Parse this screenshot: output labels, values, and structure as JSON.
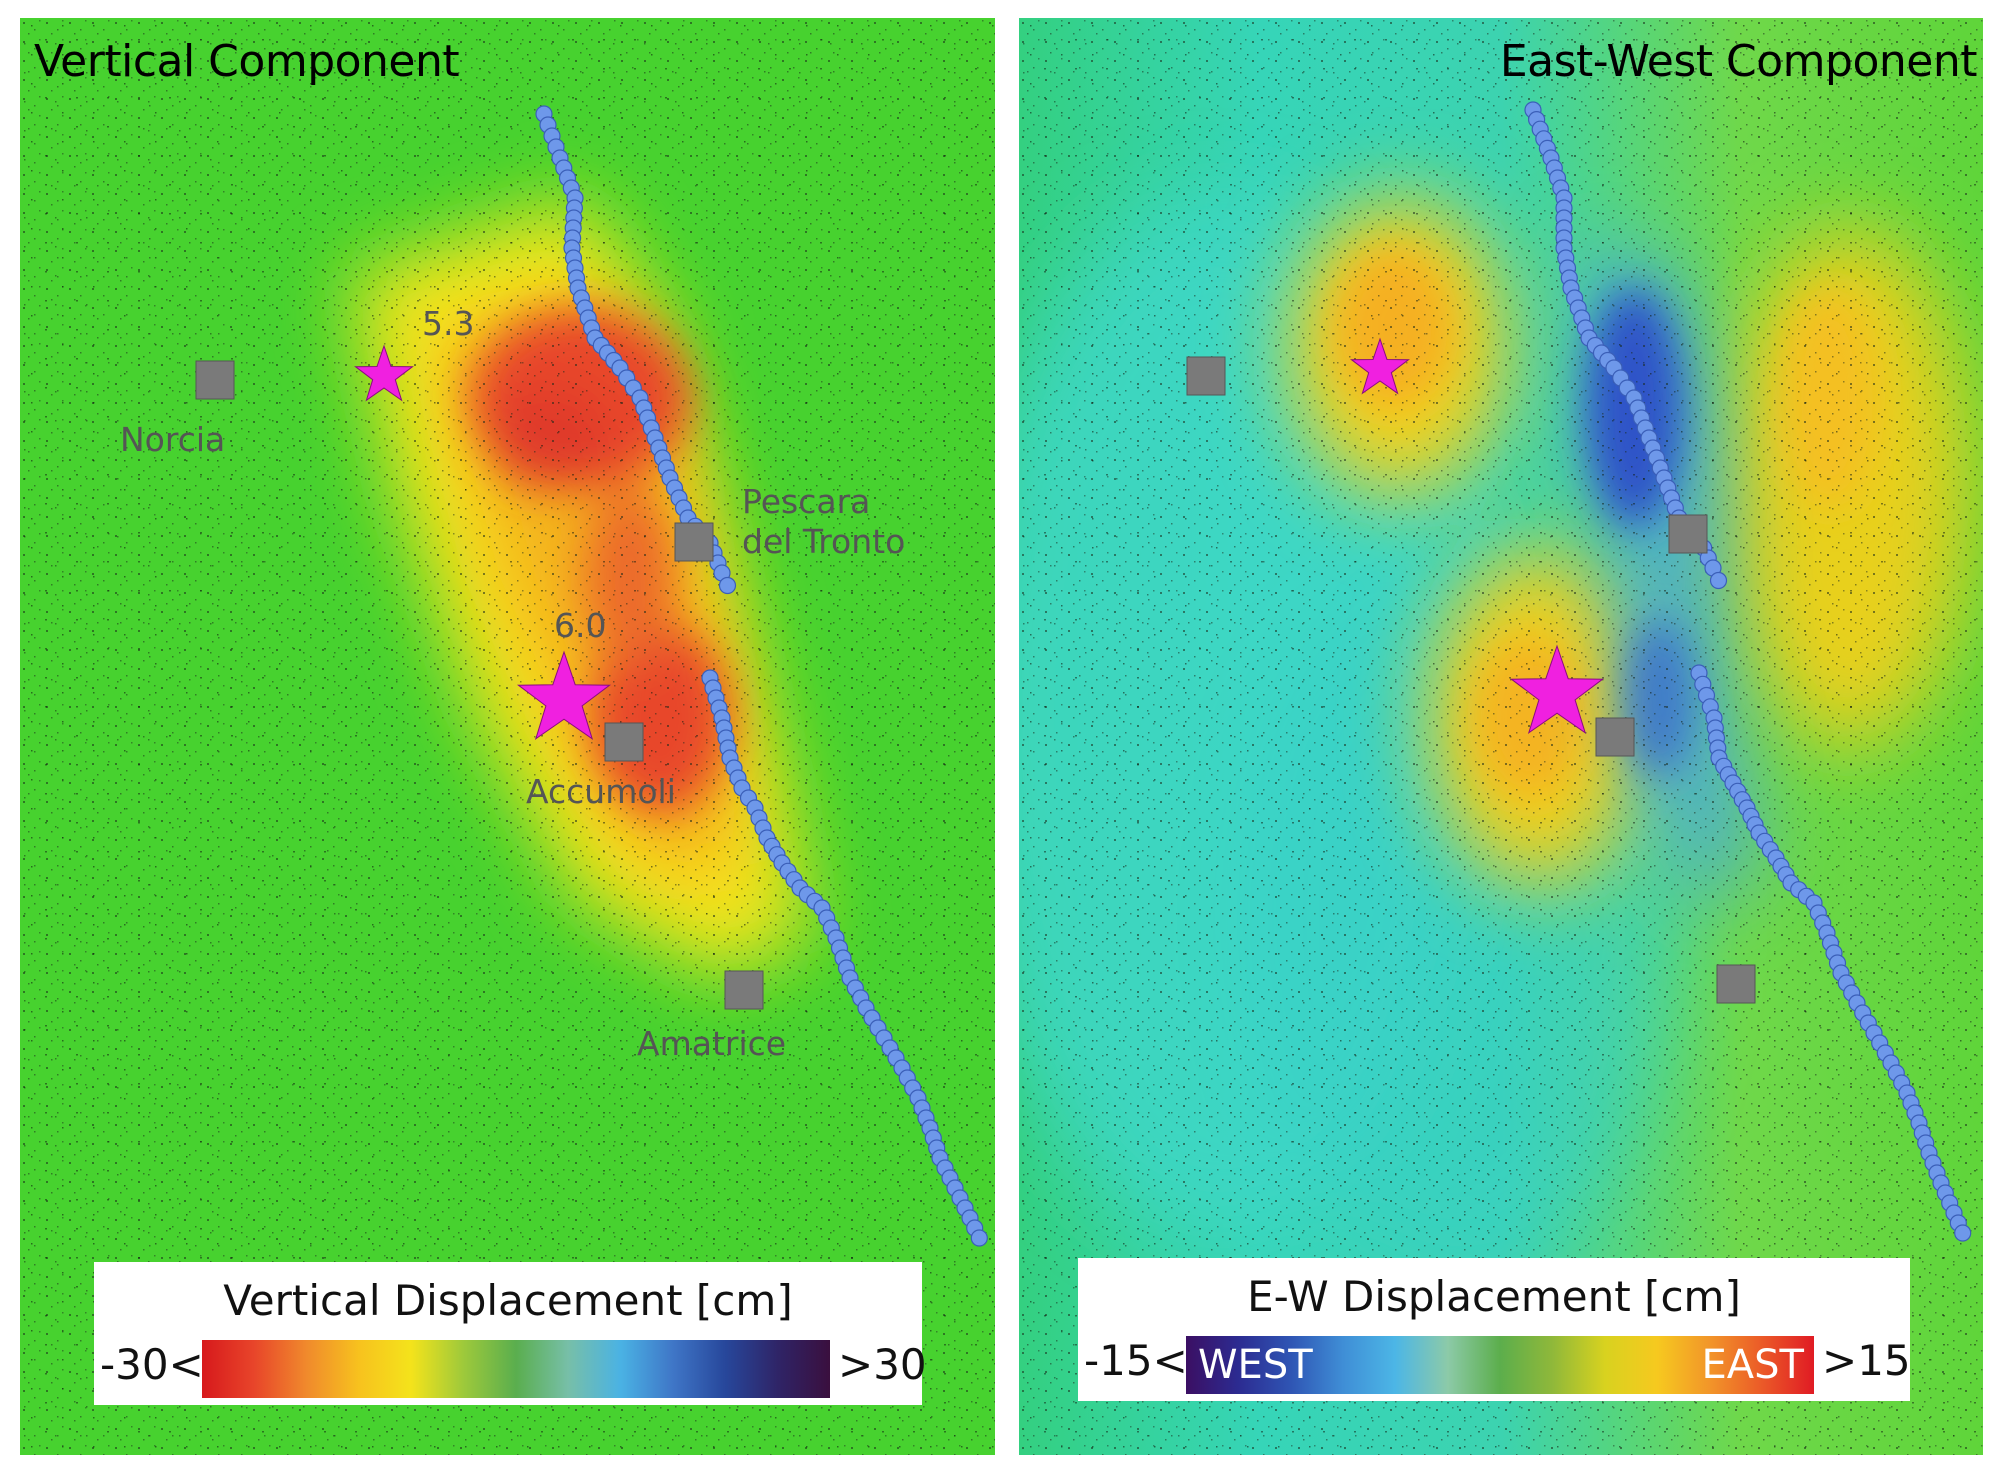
{
  "panels": {
    "vertical": {
      "title": "Vertical Component",
      "legend_title": "Vertical Displacement [cm]",
      "legend_min": "-30<",
      "legend_max": ">30",
      "colorbar_colors": [
        "#d7191c",
        "#e8452a",
        "#f08a2c",
        "#f7c21e",
        "#f4e31b",
        "#9dc93b",
        "#5aae4e",
        "#77bfa8",
        "#4ab2e4",
        "#3f76c7",
        "#27479b",
        "#2f2467",
        "#3a0f3e"
      ],
      "towns": [
        "Norcia",
        "Pescara\ndel Tronto",
        "Accumoli",
        "Amatrice"
      ],
      "magnitudes": [
        "5.3",
        "6.0"
      ]
    },
    "east_west": {
      "title": "East-West Component",
      "legend_title": "E-W Displacement [cm]",
      "legend_min": "-15<",
      "legend_max": ">15",
      "west_label": "WEST",
      "east_label": "EAST",
      "colorbar_colors": [
        "#3b0f63",
        "#2c2b91",
        "#2f55b4",
        "#3f8ed6",
        "#4cb6e6",
        "#8ccaa8",
        "#5cae4c",
        "#8fb83a",
        "#d8d21f",
        "#f6c91f",
        "#f29629",
        "#eb5a28",
        "#e01b24"
      ]
    }
  },
  "colors": {
    "epicenter_star": "#f020e0",
    "fault_trace": "#6e98ea",
    "town_marker": "#7a7a7a"
  },
  "icons": [
    "star-icon",
    "square-marker-icon",
    "fault-dot-icon"
  ]
}
